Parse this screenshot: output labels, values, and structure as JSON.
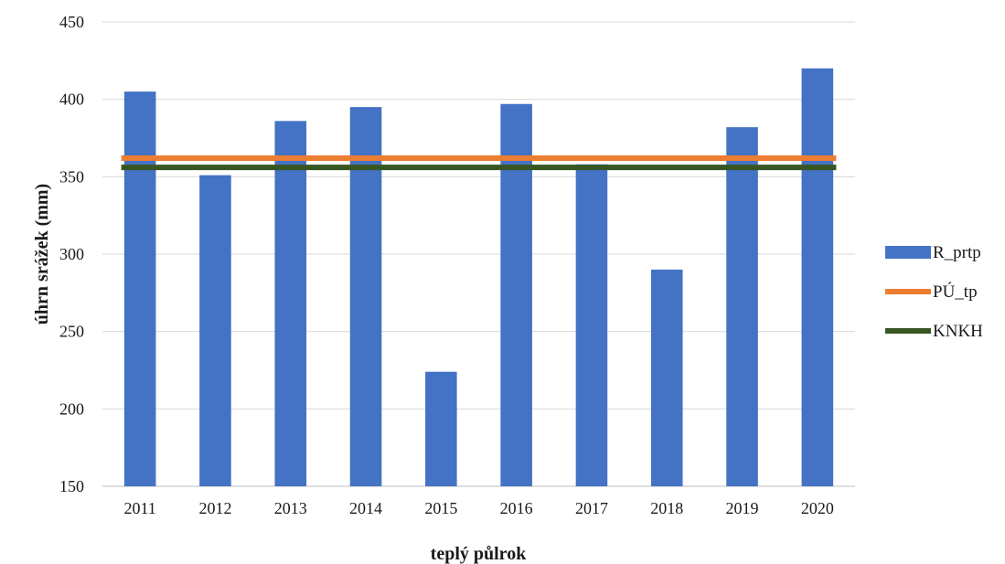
{
  "chart_data": {
    "type": "bar",
    "xlabel": "teplý půlrok",
    "ylabel": "úhrn srážek (mm)",
    "ylim": [
      150,
      450
    ],
    "yticks": [
      150,
      200,
      250,
      300,
      350,
      400,
      450
    ],
    "grid": true,
    "legend_position": "right",
    "categories": [
      "2011",
      "2012",
      "2013",
      "2014",
      "2015",
      "2016",
      "2017",
      "2018",
      "2019",
      "2020"
    ],
    "series": [
      {
        "name": "R_prtp",
        "kind": "bar",
        "color": "#4472c4",
        "values": [
          405,
          351,
          386,
          395,
          224,
          397,
          358,
          290,
          382,
          420
        ]
      },
      {
        "name": "PÚ_tp",
        "kind": "line",
        "color": "#ed7d31",
        "values": [
          362,
          362,
          362,
          362,
          362,
          362,
          362,
          362,
          362,
          362
        ]
      },
      {
        "name": "KNKH",
        "kind": "line",
        "color": "#375623",
        "values": [
          356,
          356,
          356,
          356,
          356,
          356,
          356,
          356,
          356,
          356
        ]
      }
    ]
  }
}
